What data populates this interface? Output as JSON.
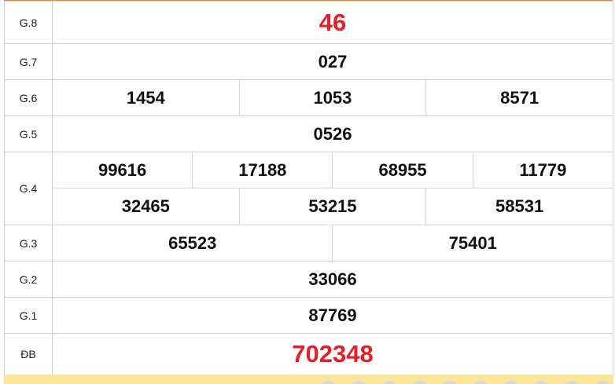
{
  "prizes": {
    "g8": {
      "label": "G.8",
      "values": [
        "46"
      ]
    },
    "g7": {
      "label": "G.7",
      "values": [
        "027"
      ]
    },
    "g6": {
      "label": "G.6",
      "values": [
        "1454",
        "1053",
        "8571"
      ]
    },
    "g5": {
      "label": "G.5",
      "values": [
        "0526"
      ]
    },
    "g4": {
      "label": "G.4",
      "values": [
        "99616",
        "17188",
        "68955",
        "11779",
        "32465",
        "53215",
        "58531"
      ]
    },
    "g3": {
      "label": "G.3",
      "values": [
        "65523",
        "75401"
      ]
    },
    "g2": {
      "label": "G.2",
      "values": [
        "33066"
      ]
    },
    "g1": {
      "label": "G.1",
      "values": [
        "87769"
      ]
    },
    "db": {
      "label": "ĐB",
      "values": [
        "702348"
      ]
    }
  },
  "colors": {
    "accent": "#f0802a",
    "special": "#e0202a",
    "strip": "#fde59a"
  }
}
